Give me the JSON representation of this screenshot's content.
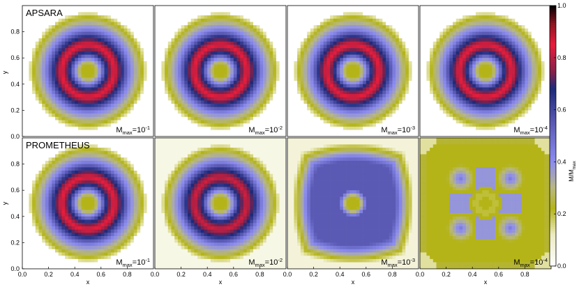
{
  "figure": {
    "rows": [
      {
        "label": "APSARA"
      },
      {
        "label": "PROMETHEUS"
      }
    ]
  },
  "chart_data": {
    "type": "heatmap",
    "title": "",
    "xlabel": "x",
    "ylabel": "y",
    "xlim": [
      0.0,
      1.0
    ],
    "ylim": [
      0.0,
      1.0
    ],
    "x_ticks": [
      "0.0",
      "0.2",
      "0.4",
      "0.6",
      "0.8"
    ],
    "y_ticks": [
      "0.0",
      "0.2",
      "0.4",
      "0.6",
      "0.8"
    ],
    "grid_resolution": 40,
    "colorbar": {
      "label_main": "M/M",
      "label_sub": "max",
      "range": [
        0.0,
        1.0
      ],
      "ticks": [
        "0.0",
        "0.2",
        "0.4",
        "0.6",
        "0.8",
        "1.0"
      ],
      "colors": [
        [
          0.0,
          "#ffffff"
        ],
        [
          0.12,
          "#ecebc0"
        ],
        [
          0.22,
          "#b4b418"
        ],
        [
          0.3,
          "#b8b884"
        ],
        [
          0.4,
          "#8c8cf0"
        ],
        [
          0.55,
          "#5a5ab4"
        ],
        [
          0.68,
          "#1e2a7a"
        ],
        [
          0.75,
          "#8a2248"
        ],
        [
          0.85,
          "#e81c3c"
        ],
        [
          0.93,
          "#8c1420"
        ],
        [
          1.0,
          "#000000"
        ]
      ]
    },
    "panels": [
      {
        "row": "APSARA",
        "mmax_base": "M",
        "mmax_sub": "max",
        "mmax_value": "=10",
        "mmax_exp": "-1"
      },
      {
        "row": "APSARA",
        "mmax_base": "M",
        "mmax_sub": "max",
        "mmax_value": "=10",
        "mmax_exp": "-2"
      },
      {
        "row": "APSARA",
        "mmax_base": "M",
        "mmax_sub": "max",
        "mmax_value": "=10",
        "mmax_exp": "-3"
      },
      {
        "row": "APSARA",
        "mmax_base": "M",
        "mmax_sub": "max",
        "mmax_value": "=10",
        "mmax_exp": "-4"
      },
      {
        "row": "PROMETHEUS",
        "mmax_base": "M",
        "mmax_sub": "max",
        "mmax_value": "=10",
        "mmax_exp": "-1"
      },
      {
        "row": "PROMETHEUS",
        "mmax_base": "M",
        "mmax_sub": "max",
        "mmax_value": "=10",
        "mmax_exp": "-2"
      },
      {
        "row": "PROMETHEUS",
        "mmax_base": "M",
        "mmax_sub": "max",
        "mmax_value": "=10",
        "mmax_exp": "-3"
      },
      {
        "row": "PROMETHEUS",
        "mmax_base": "M",
        "mmax_sub": "max",
        "mmax_value": "=10",
        "mmax_exp": "-4"
      }
    ],
    "field_description": {
      "center": [
        0.5,
        0.5
      ],
      "ring_radius_peak": 0.2,
      "ring_peak_value": 0.84,
      "center_value": 0.22,
      "outer_edge_value": 0.0
    }
  }
}
